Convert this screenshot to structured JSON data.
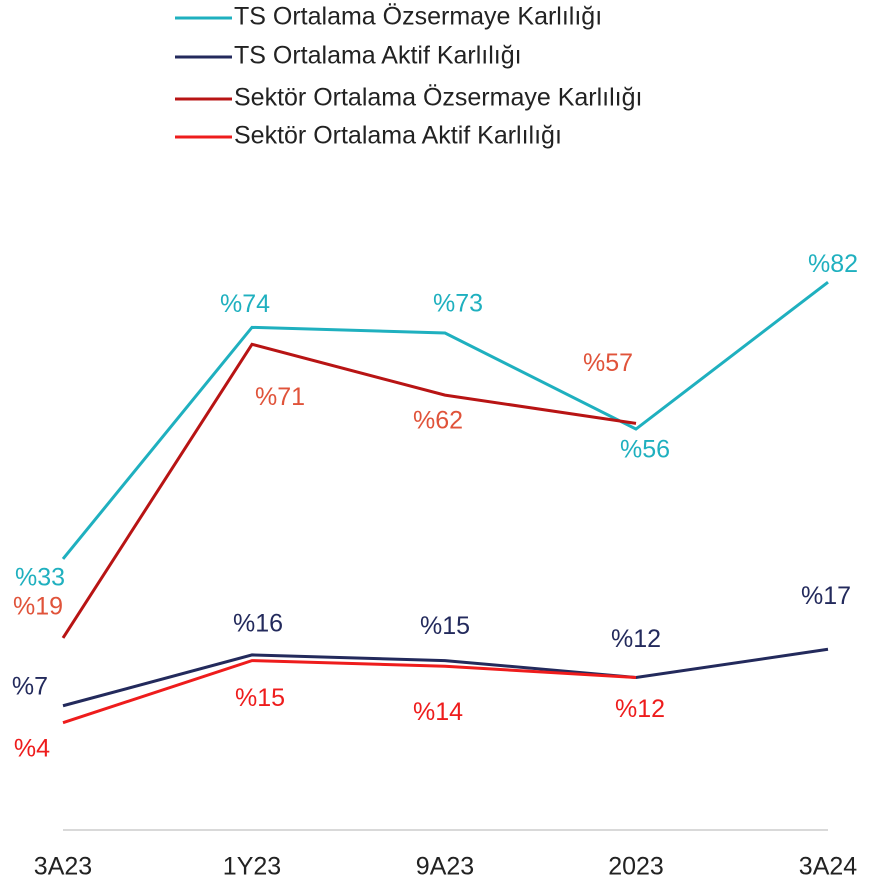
{
  "chart_data": {
    "type": "line",
    "categories": [
      "3A23",
      "1Y23",
      "9A23",
      "2023",
      "3A24"
    ],
    "ylim": [
      -15,
      90
    ],
    "series": [
      {
        "name": "TS Ortalama Özsermaye Karlılığı",
        "color": "#1fb0bf",
        "label_color": "#1fb0bf",
        "values": [
          33,
          74,
          73,
          56,
          82
        ],
        "value_labels": [
          "%33",
          "%74",
          "%73",
          "%56",
          "%82"
        ]
      },
      {
        "name": "TS Ortalama Aktif Karlılığı",
        "color": "#232a5c",
        "label_color": "#232a5c",
        "values": [
          7,
          16,
          15,
          12,
          17
        ],
        "value_labels": [
          "%7",
          "%16",
          "%15",
          "%12",
          "%17"
        ]
      },
      {
        "name": "Sektör Ortalama Özsermaye Karlılığı",
        "color": "#b81414",
        "label_color": "#e0533a",
        "values": [
          19,
          71,
          62,
          57,
          null
        ],
        "value_labels": [
          "%19",
          "%71",
          "%62",
          "%57",
          null
        ]
      },
      {
        "name": "Sektör Ortalama Aktif Karlılığı",
        "color": "#ee1c1c",
        "label_color": "#ee1c1c",
        "values": [
          4,
          15,
          14,
          12,
          null
        ],
        "value_labels": [
          "%4",
          "%15",
          "%14",
          "%12",
          null
        ]
      }
    ]
  }
}
